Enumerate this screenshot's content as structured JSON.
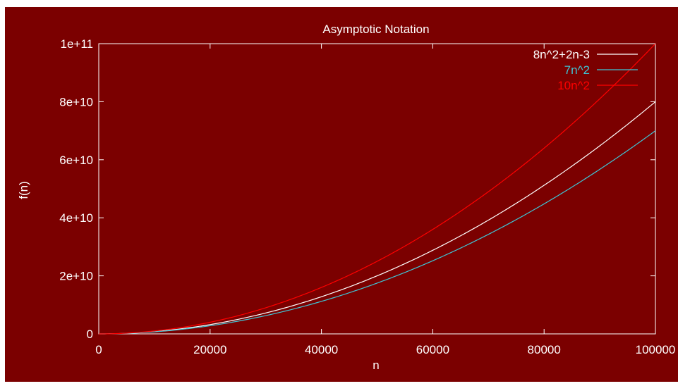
{
  "chart_data": {
    "type": "line",
    "title": "Asymptotic Notation",
    "xlabel": "n",
    "ylabel": "f(n)",
    "xlim": [
      0,
      100000
    ],
    "ylim": [
      0,
      100000000000
    ],
    "x_ticks": [
      0,
      20000,
      40000,
      60000,
      80000,
      100000
    ],
    "x_tick_labels": [
      "0",
      "20000",
      "40000",
      "60000",
      "80000",
      "100000"
    ],
    "y_ticks": [
      0,
      20000000000,
      40000000000,
      60000000000,
      80000000000,
      100000000000
    ],
    "y_tick_labels": [
      "0",
      "2e+10",
      "4e+10",
      "6e+10",
      "8e+10",
      "1e+11"
    ],
    "grid": false,
    "legend_position": "top-right",
    "series": [
      {
        "name": "8n^2+2n-3",
        "color": "#ffffff",
        "coefficients": [
          8,
          2,
          -3
        ]
      },
      {
        "name": "7n^2",
        "color": "#3ec6d6",
        "coefficients": [
          7,
          0,
          0
        ]
      },
      {
        "name": "10n^2",
        "color": "#ff0000",
        "coefficients": [
          10,
          0,
          0
        ]
      }
    ]
  }
}
